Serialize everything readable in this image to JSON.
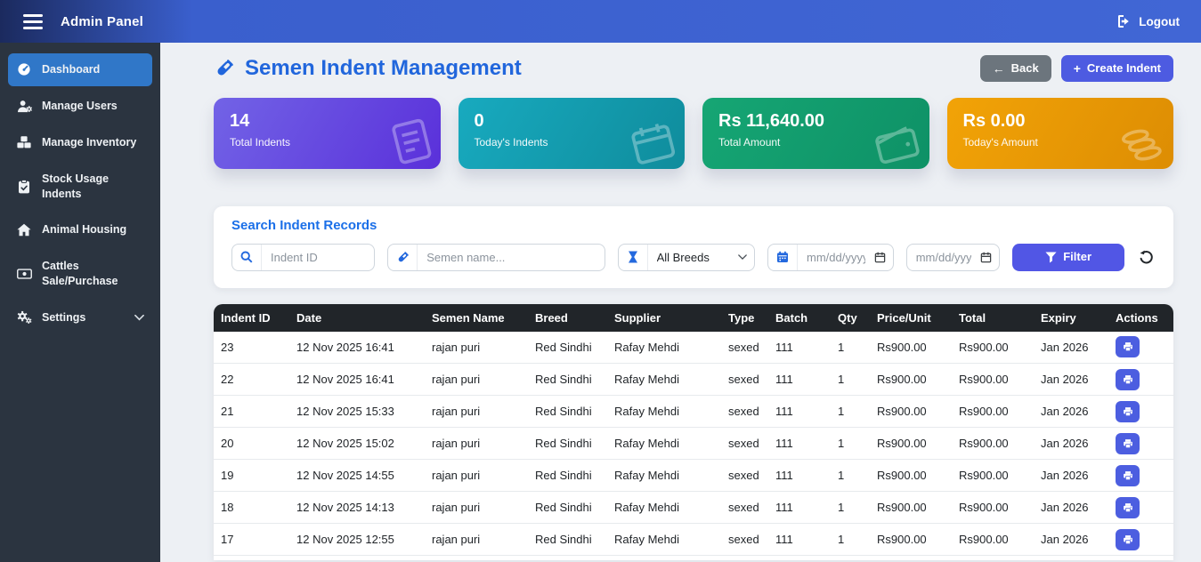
{
  "navbar": {
    "title": "Admin Panel",
    "logout_label": "Logout"
  },
  "sidebar": {
    "items": [
      {
        "label": "Dashboard",
        "active": true
      },
      {
        "label": "Manage Users"
      },
      {
        "label": "Manage Inventory"
      },
      {
        "label": "Stock Usage Indents"
      },
      {
        "label": "Animal Housing"
      },
      {
        "label": "Cattles Sale/Purchase"
      },
      {
        "label": "Settings"
      }
    ]
  },
  "header": {
    "title": "Semen Indent Management",
    "back_label": "Back",
    "create_label": "Create Indent"
  },
  "icons": {
    "back_arrow": "←",
    "plus": "+"
  },
  "stats": [
    {
      "value": "14",
      "label": "Total Indents"
    },
    {
      "value": "0",
      "label": "Today's Indents"
    },
    {
      "value": "Rs 11,640.00",
      "label": "Total Amount"
    },
    {
      "value": "Rs 0.00",
      "label": "Today's Amount"
    }
  ],
  "search": {
    "title": "Search Indent Records",
    "indent_id_placeholder": "Indent ID",
    "semen_placeholder": "Semen name...",
    "breed_selected": "All Breeds",
    "date_from_placeholder": "mm/dd/yyyy",
    "date_to_placeholder": "mm/dd/yyyy",
    "filter_label": "Filter"
  },
  "table": {
    "columns": [
      "Indent ID",
      "Date",
      "Semen Name",
      "Breed",
      "Supplier",
      "Type",
      "Batch",
      "Qty",
      "Price/Unit",
      "Total",
      "Expiry",
      "Actions"
    ],
    "rows": [
      {
        "indent_id": "23",
        "date": "12 Nov 2025 16:41",
        "semen_name": "rajan puri",
        "breed": "Red Sindhi",
        "supplier": "Rafay Mehdi",
        "type": "sexed",
        "batch": "111",
        "qty": "1",
        "price_unit": "Rs900.00",
        "total": "Rs900.00",
        "expiry": "Jan 2026"
      },
      {
        "indent_id": "22",
        "date": "12 Nov 2025 16:41",
        "semen_name": "rajan puri",
        "breed": "Red Sindhi",
        "supplier": "Rafay Mehdi",
        "type": "sexed",
        "batch": "111",
        "qty": "1",
        "price_unit": "Rs900.00",
        "total": "Rs900.00",
        "expiry": "Jan 2026"
      },
      {
        "indent_id": "21",
        "date": "12 Nov 2025 15:33",
        "semen_name": "rajan puri",
        "breed": "Red Sindhi",
        "supplier": "Rafay Mehdi",
        "type": "sexed",
        "batch": "111",
        "qty": "1",
        "price_unit": "Rs900.00",
        "total": "Rs900.00",
        "expiry": "Jan 2026"
      },
      {
        "indent_id": "20",
        "date": "12 Nov 2025 15:02",
        "semen_name": "rajan puri",
        "breed": "Red Sindhi",
        "supplier": "Rafay Mehdi",
        "type": "sexed",
        "batch": "111",
        "qty": "1",
        "price_unit": "Rs900.00",
        "total": "Rs900.00",
        "expiry": "Jan 2026"
      },
      {
        "indent_id": "19",
        "date": "12 Nov 2025 14:55",
        "semen_name": "rajan puri",
        "breed": "Red Sindhi",
        "supplier": "Rafay Mehdi",
        "type": "sexed",
        "batch": "111",
        "qty": "1",
        "price_unit": "Rs900.00",
        "total": "Rs900.00",
        "expiry": "Jan 2026"
      },
      {
        "indent_id": "18",
        "date": "12 Nov 2025 14:13",
        "semen_name": "rajan puri",
        "breed": "Red Sindhi",
        "supplier": "Rafay Mehdi",
        "type": "sexed",
        "batch": "111",
        "qty": "1",
        "price_unit": "Rs900.00",
        "total": "Rs900.00",
        "expiry": "Jan 2026"
      },
      {
        "indent_id": "17",
        "date": "12 Nov 2025 12:55",
        "semen_name": "rajan puri",
        "breed": "Red Sindhi",
        "supplier": "Rafay Mehdi",
        "type": "sexed",
        "batch": "111",
        "qty": "1",
        "price_unit": "Rs900.00",
        "total": "Rs900.00",
        "expiry": "Jan 2026"
      }
    ]
  },
  "colors": {
    "navbar_gradient": [
      "#1b2a5e",
      "#4166d5"
    ],
    "sidebar_bg": "#2b3440",
    "active_item_bg": "#3077c8",
    "title_blue": "#2166dc",
    "button_indigo": "#4d5be1",
    "filter_indigo": "#5156e5",
    "back_gray": "#6c757d",
    "card_purple": [
      "#7263e6",
      "#5a30da"
    ],
    "card_teal": [
      "#18aabf",
      "#0f8c9c"
    ],
    "card_green": [
      "#16a674",
      "#0e9166"
    ],
    "card_orange": [
      "#f2a307",
      "#dd8d03"
    ],
    "table_header_bg": "#212529",
    "print_button_bg": "#4c5ee0"
  }
}
